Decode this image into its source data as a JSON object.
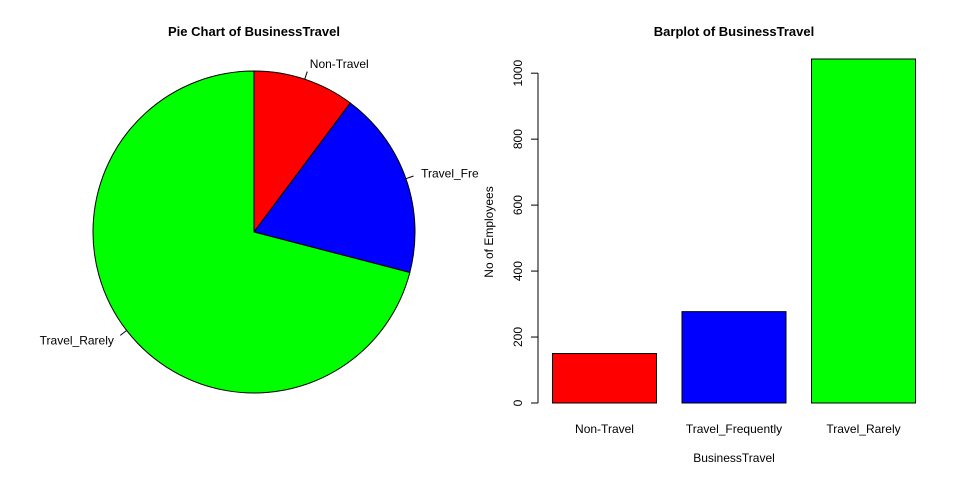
{
  "chart_data": [
    {
      "type": "pie",
      "title": "Pie Chart of BusinessTravel",
      "labels": [
        "Non-Travel",
        "Travel_Fre",
        "Travel_Rarely"
      ],
      "values": [
        150,
        277,
        1043
      ],
      "colors": [
        "#ff0000",
        "#0000ff",
        "#00ff00"
      ],
      "direction": "clockwise",
      "start_angle_deg": 90
    },
    {
      "type": "bar",
      "title": "Barplot of BusinessTravel",
      "categories": [
        "Non-Travel",
        "Travel_Frequently",
        "Travel_Rarely"
      ],
      "values": [
        150,
        277,
        1043
      ],
      "colors": [
        "#ff0000",
        "#0000ff",
        "#00ff00"
      ],
      "xlabel": "BusinessTravel",
      "ylabel": "No of Employees",
      "ylim": [
        0,
        1043
      ],
      "yticks": [
        0,
        200,
        400,
        600,
        800,
        1000
      ]
    }
  ]
}
